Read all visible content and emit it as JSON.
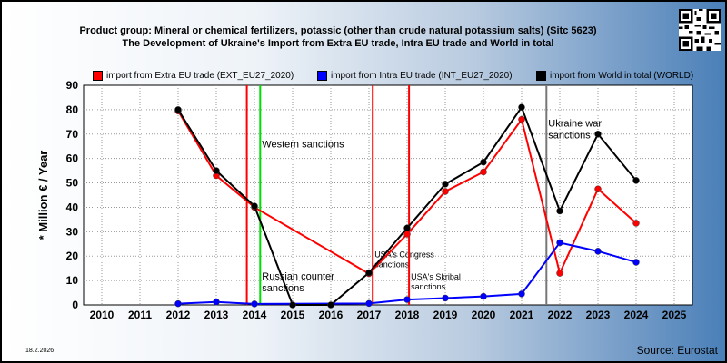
{
  "title_line1": "Product group: Mineral or chemical fertilizers, potassic (other than crude natural potassium salts) (Sitc 5623)",
  "title_line2": "The Development of Ukraine's Import from Extra EU trade, Intra EU trade and World in total",
  "date": "18.2.2026",
  "source": "Source: Eurostat",
  "legend": [
    {
      "label": "import from Extra EU trade (EXT_EU27_2020)",
      "color": "#ff0000"
    },
    {
      "label": "import from Intra EU trade (INT_EU27_2020)",
      "color": "#0000ff"
    },
    {
      "label": "import from World in total (WORLD)",
      "color": "#000000"
    }
  ],
  "chart_data": {
    "type": "line",
    "ylabel": "* Million € / Year",
    "x": [
      "2010",
      "2011",
      "2012",
      "2013",
      "2014",
      "2015",
      "2016",
      "2017",
      "2018",
      "2019",
      "2020",
      "2021",
      "2022",
      "2023",
      "2024",
      "2025"
    ],
    "ylim": [
      0,
      90
    ],
    "yticks": [
      0,
      10,
      20,
      30,
      40,
      50,
      60,
      70,
      80,
      90
    ],
    "grid": true,
    "series": [
      {
        "name": "import from Extra EU trade (EXT_EU27_2020)",
        "color": "#ff0000",
        "values": [
          null,
          null,
          79.5,
          53.0,
          40.0,
          null,
          null,
          12.8,
          29.0,
          46.5,
          54.5,
          76.0,
          13.0,
          47.5,
          33.5,
          null
        ]
      },
      {
        "name": "import from Intra EU trade (INT_EU27_2020)",
        "color": "#0000ff",
        "values": [
          null,
          null,
          0.5,
          1.2,
          0.4,
          null,
          null,
          0.6,
          2.2,
          2.8,
          3.5,
          4.5,
          25.5,
          22.0,
          17.5,
          null
        ]
      },
      {
        "name": "import from World in total (WORLD)",
        "color": "#000000",
        "values": [
          null,
          null,
          80.0,
          55.0,
          40.5,
          0,
          0,
          13.2,
          31.5,
          49.5,
          58.5,
          81.0,
          38.5,
          70.0,
          51.0,
          null
        ]
      }
    ],
    "events": [
      {
        "x": 2013.8,
        "color": "#ff0000",
        "label": "",
        "label_lines": []
      },
      {
        "x": 2014.15,
        "color": "#00dd00",
        "label": "Western sanctions",
        "label_lines": [
          "Western sanctions"
        ],
        "label_y": 64.5
      },
      {
        "x": 2014.15,
        "color": "none",
        "label": "Russian counter sanctions",
        "label_lines": [
          "Russian counter",
          "sanctions"
        ],
        "label_y": 10.5
      },
      {
        "x": 2017.1,
        "color": "#ff0000",
        "label": "USA's Congress sanctions",
        "label_lines": [
          "USA's Congress",
          "sanctions"
        ],
        "label_y": 19.5
      },
      {
        "x": 2018.05,
        "color": "#ff0000",
        "label": "USA's Skribal sanctions",
        "label_lines": [
          "USA's Skribal",
          "sanctions"
        ],
        "label_y": 10.5
      },
      {
        "x": 2021.65,
        "color": "#777777",
        "label": "Ukraine war sanctions",
        "label_lines": [
          "Ukraine war",
          "sanctions"
        ],
        "label_y": 73.0
      }
    ]
  }
}
